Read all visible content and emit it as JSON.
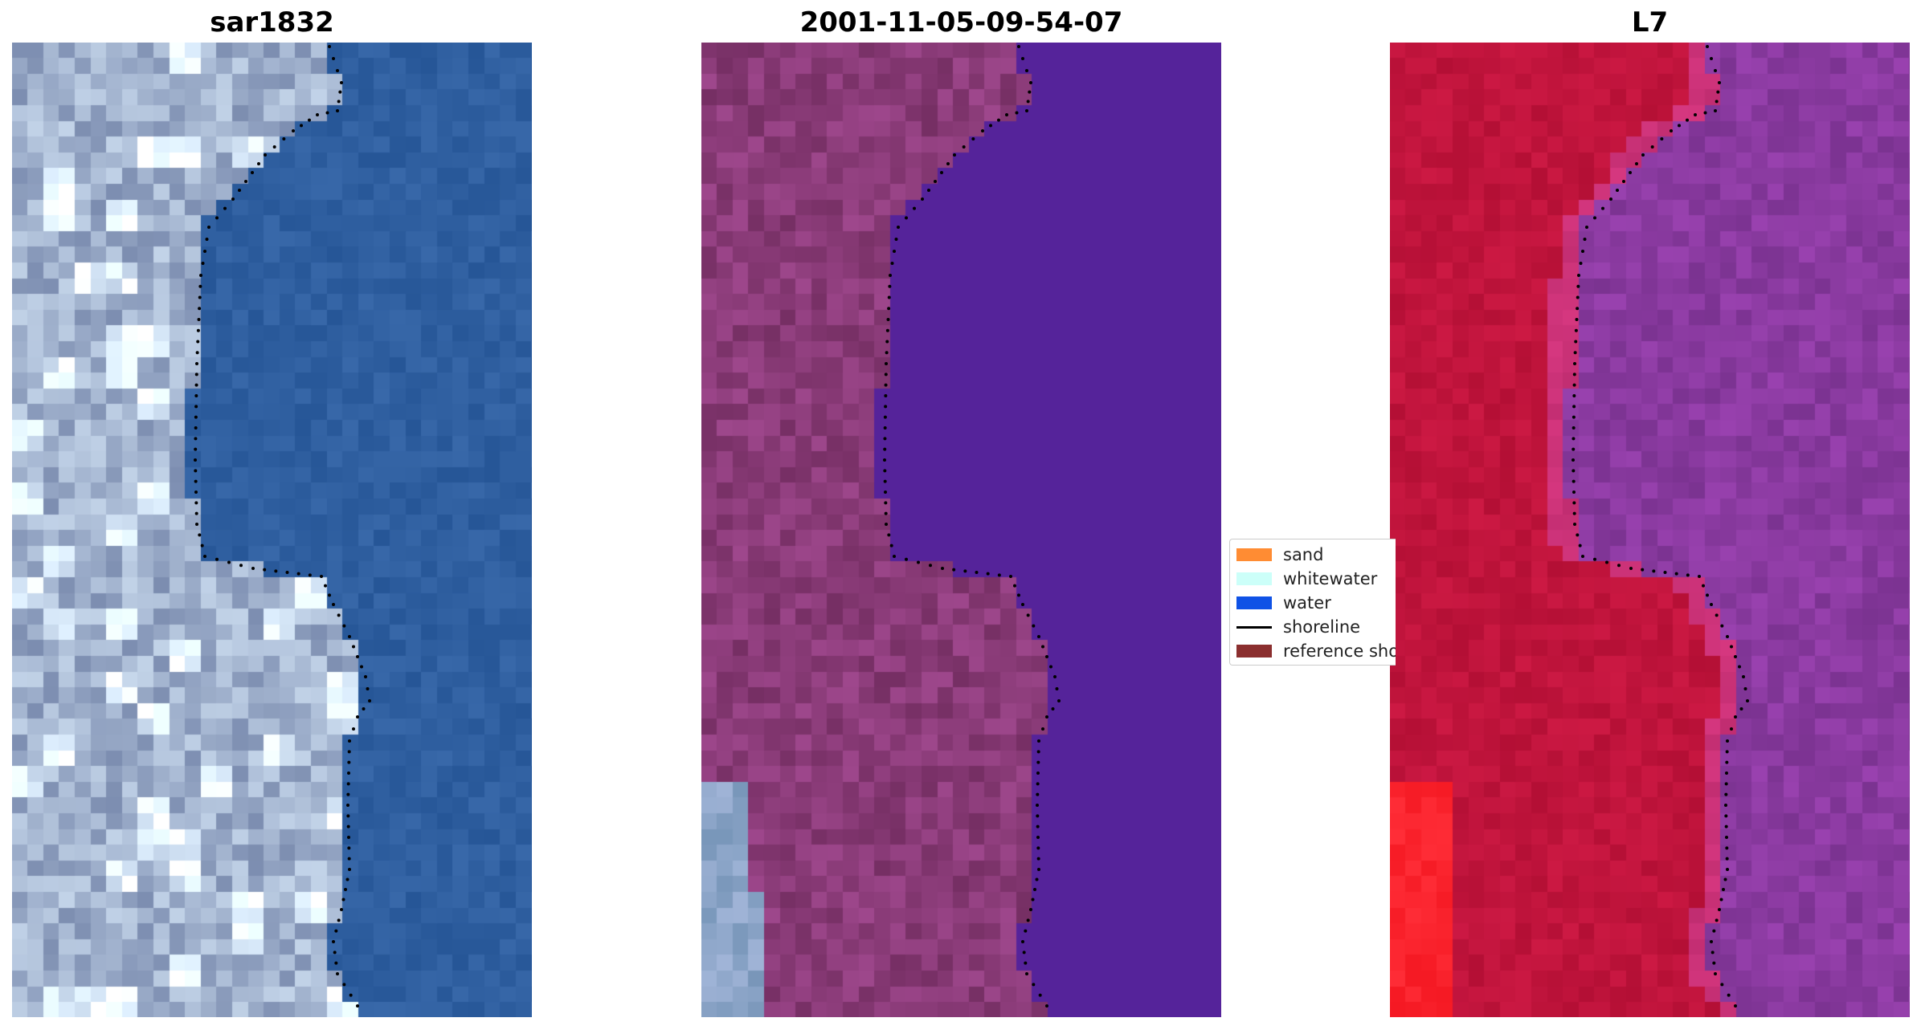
{
  "titles": {
    "left": "sar1832",
    "middle": "2001-11-05-09-54-07",
    "right": "L7"
  },
  "legend": {
    "items": [
      {
        "label": "sand",
        "color": "#ff8c33"
      },
      {
        "label": "whitewater",
        "color": "#ccfff9"
      },
      {
        "label": "water",
        "color": "#0f52e6"
      },
      {
        "label": "shoreline",
        "color": "#000000"
      },
      {
        "label": "reference shoreline",
        "color": "#8b2f2f"
      }
    ]
  },
  "colors": {
    "rgb_land": "#9fb0cc",
    "rgb_water": "#2f5fa0",
    "classified_land": "#8a3b78",
    "classified_water": "#55239a",
    "ndwi_land": "#c0143c",
    "ndwi_water": "#8a3aa0"
  }
}
